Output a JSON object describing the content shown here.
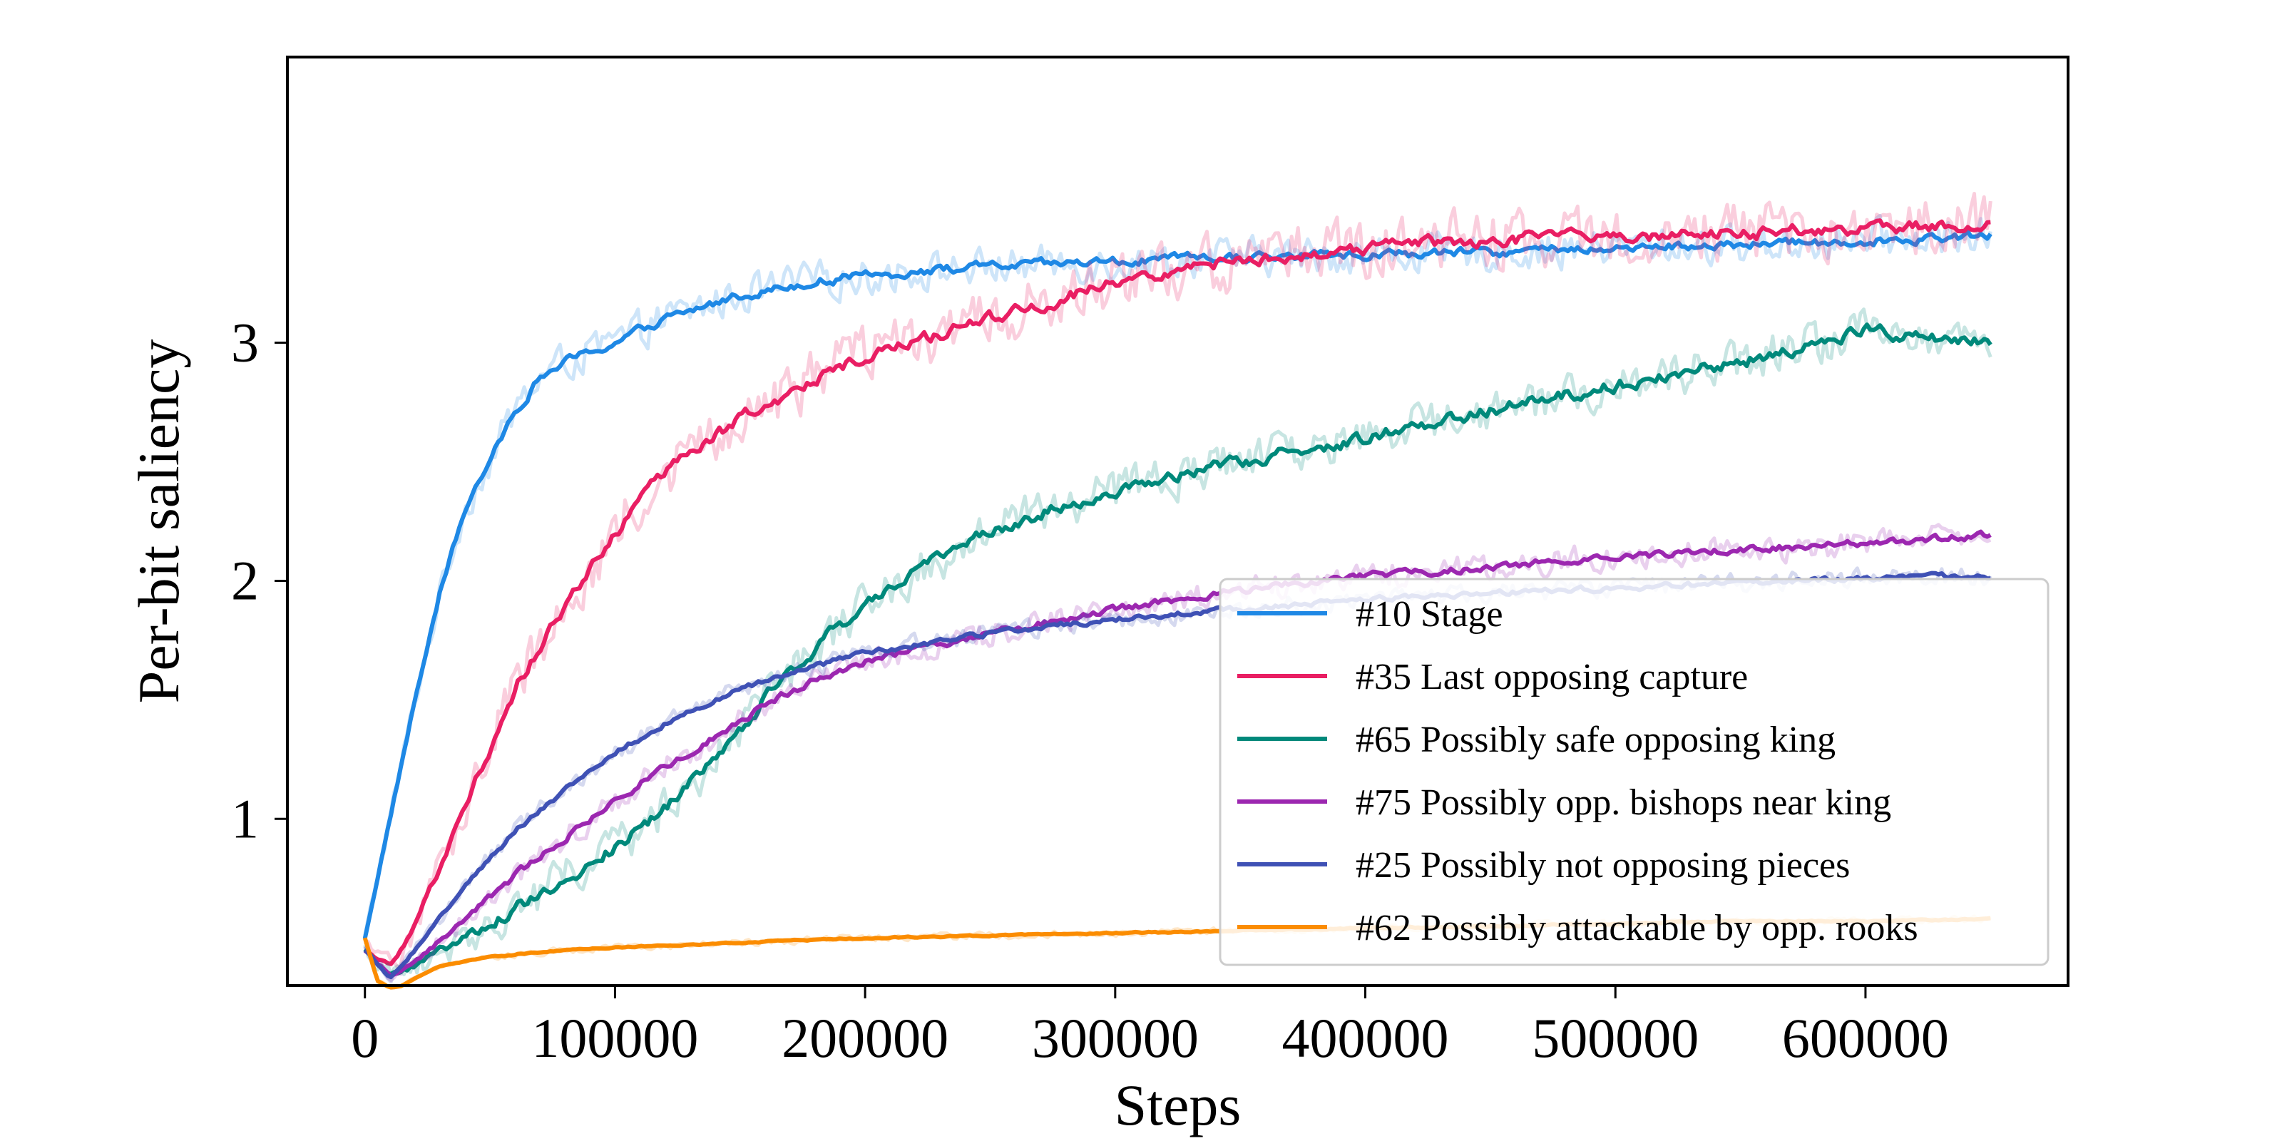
{
  "chart_data": {
    "type": "line",
    "title": "",
    "xlabel": "Steps",
    "ylabel": "Per-bit saliency",
    "xlim": [
      -31000,
      681000
    ],
    "ylim": [
      0.3,
      4.2
    ],
    "x_ticks": [
      0,
      100000,
      200000,
      300000,
      400000,
      500000,
      600000
    ],
    "x_tick_labels": [
      "0",
      "100000",
      "200000",
      "300000",
      "400000",
      "500000",
      "600000"
    ],
    "y_ticks": [
      1,
      2,
      3
    ],
    "y_tick_labels": [
      "1",
      "2",
      "3"
    ],
    "grid": false,
    "legend": "lower-right",
    "note": "Each series drawn as a light raw line plus a darker smoothed line.",
    "series": [
      {
        "name": "#10 Stage",
        "color": "#1E88E5",
        "x": [
          0,
          5000,
          10000,
          15000,
          20000,
          25000,
          30000,
          40000,
          50000,
          60000,
          70000,
          80000,
          100000,
          120000,
          150000,
          180000,
          220000,
          250000,
          300000,
          350000,
          400000,
          450000,
          500000,
          550000,
          600000,
          650000
        ],
        "values": [
          0.5,
          0.75,
          1.0,
          1.25,
          1.5,
          1.72,
          1.95,
          2.3,
          2.5,
          2.72,
          2.85,
          2.92,
          3.0,
          3.1,
          3.2,
          3.26,
          3.3,
          3.32,
          3.34,
          3.36,
          3.37,
          3.38,
          3.4,
          3.41,
          3.43,
          3.45
        ]
      },
      {
        "name": "#35 Last opposing capture",
        "color": "#E91E63",
        "x": [
          0,
          10000,
          20000,
          30000,
          40000,
          50000,
          60000,
          80000,
          100000,
          120000,
          150000,
          180000,
          200000,
          250000,
          300000,
          350000,
          400000,
          450000,
          500000,
          550000,
          600000,
          650000
        ],
        "values": [
          0.45,
          0.38,
          0.55,
          0.8,
          1.05,
          1.3,
          1.55,
          1.9,
          2.2,
          2.45,
          2.68,
          2.85,
          2.95,
          3.1,
          3.25,
          3.35,
          3.4,
          3.43,
          3.45,
          3.46,
          3.48,
          3.5
        ]
      },
      {
        "name": "#65 Possibly safe opposing king",
        "color": "#00897B",
        "x": [
          0,
          10000,
          20000,
          40000,
          60000,
          80000,
          100000,
          120000,
          140000,
          160000,
          180000,
          200000,
          230000,
          260000,
          300000,
          350000,
          400000,
          450000,
          500000,
          550000,
          600000,
          650000
        ],
        "values": [
          0.45,
          0.34,
          0.38,
          0.5,
          0.62,
          0.75,
          0.88,
          1.05,
          1.25,
          1.5,
          1.72,
          1.9,
          2.1,
          2.25,
          2.38,
          2.5,
          2.6,
          2.72,
          2.82,
          2.92,
          3.05,
          3.0
        ]
      },
      {
        "name": "#75 Possibly opp. bishops near king",
        "color": "#9C27B0",
        "x": [
          0,
          10000,
          20000,
          40000,
          60000,
          80000,
          100000,
          120000,
          140000,
          160000,
          180000,
          200000,
          250000,
          300000,
          350000,
          400000,
          450000,
          500000,
          550000,
          600000,
          650000
        ],
        "values": [
          0.45,
          0.34,
          0.4,
          0.58,
          0.76,
          0.92,
          1.08,
          1.22,
          1.35,
          1.48,
          1.58,
          1.66,
          1.78,
          1.88,
          1.96,
          2.02,
          2.06,
          2.1,
          2.13,
          2.16,
          2.19
        ]
      },
      {
        "name": "#25 Possibly not opposing pieces",
        "color": "#3F51B5",
        "x": [
          0,
          10000,
          20000,
          40000,
          60000,
          80000,
          100000,
          120000,
          140000,
          160000,
          180000,
          200000,
          250000,
          300000,
          350000,
          400000,
          450000,
          500000,
          550000,
          600000,
          650000
        ],
        "values": [
          0.45,
          0.33,
          0.45,
          0.72,
          0.95,
          1.12,
          1.28,
          1.4,
          1.5,
          1.58,
          1.64,
          1.7,
          1.78,
          1.84,
          1.88,
          1.92,
          1.95,
          1.97,
          1.99,
          2.01,
          2.02
        ]
      },
      {
        "name": "#62 Possibly attackable by opp. rooks",
        "color": "#FB8C00",
        "x": [
          0,
          5000,
          10000,
          15000,
          20000,
          30000,
          50000,
          80000,
          100000,
          150000,
          200000,
          250000,
          300000,
          350000,
          400000,
          450000,
          500000,
          550000,
          600000,
          650000
        ],
        "values": [
          0.5,
          0.32,
          0.29,
          0.3,
          0.33,
          0.38,
          0.42,
          0.45,
          0.46,
          0.48,
          0.5,
          0.51,
          0.52,
          0.53,
          0.54,
          0.55,
          0.56,
          0.57,
          0.57,
          0.58
        ]
      }
    ]
  }
}
